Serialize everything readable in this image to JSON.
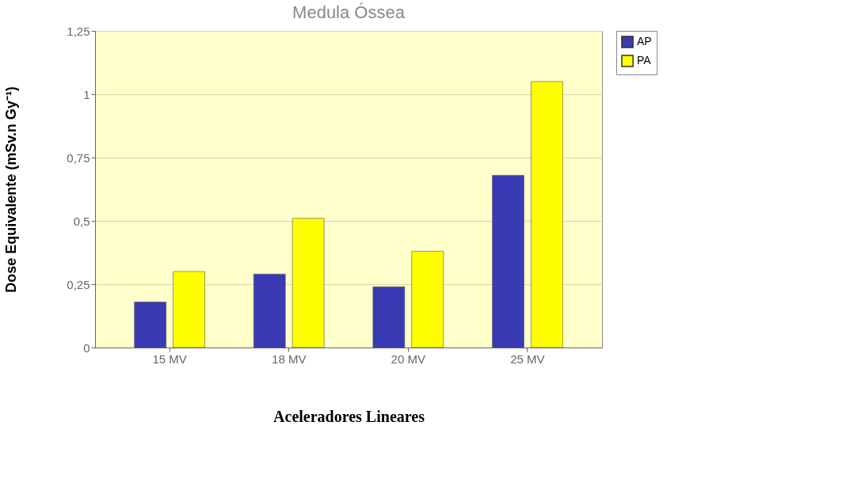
{
  "chart_data": {
    "type": "bar",
    "title": "Medula Óssea",
    "xlabel": "Aceleradores Lineares",
    "ylabel": "Dose Equivalente (mSv.n Gy⁻¹)",
    "categories": [
      "15 MV",
      "18 MV",
      "20 MV",
      "25 MV"
    ],
    "series": [
      {
        "name": "AP",
        "color": "#3a3ab4",
        "values": [
          0.18,
          0.29,
          0.24,
          0.68
        ]
      },
      {
        "name": "PA",
        "color": "#ffff00",
        "values": [
          0.3,
          0.51,
          0.38,
          1.05
        ]
      }
    ],
    "ylim": [
      0,
      1.25
    ],
    "yticks": [
      0,
      {
        "value": 0.25,
        "label": "0,25"
      },
      {
        "value": 0.5,
        "label": "0,5"
      },
      {
        "value": 0.75,
        "label": "0,75"
      },
      1,
      {
        "value": 1.25,
        "label": "1,25"
      }
    ],
    "grid": "y",
    "legend": "top right"
  }
}
